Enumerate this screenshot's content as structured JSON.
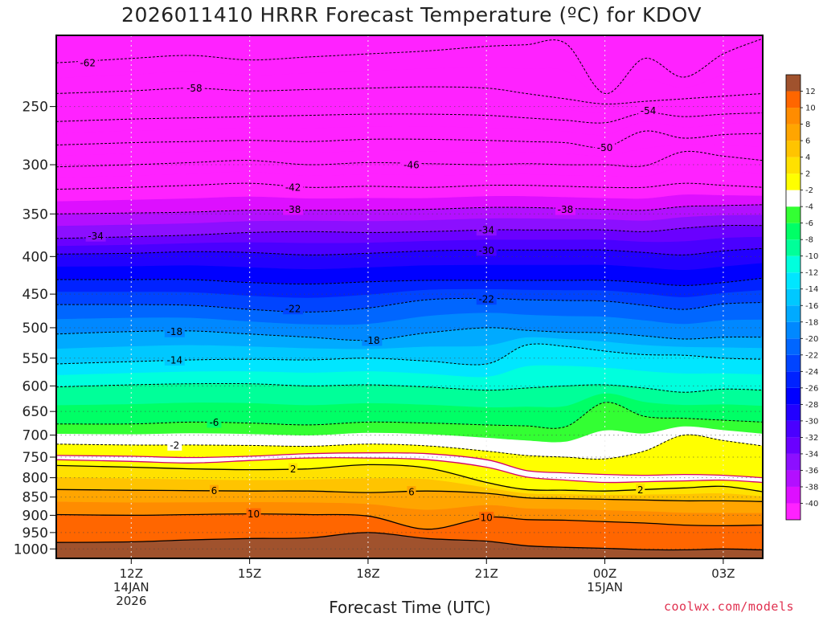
{
  "chart_data": {
    "type": "heatmap",
    "title": "2026011410 HRRR Forecast Temperature (ºC) for KDOV",
    "xlabel": "Forecast Time (UTC)",
    "ylabel": "",
    "credit": "coolwx.com/models",
    "x_ticks": [
      {
        "hour": 12,
        "label": "12Z",
        "date": "14JAN",
        "year": "2026"
      },
      {
        "hour": 15,
        "label": "15Z"
      },
      {
        "hour": 18,
        "label": "18Z"
      },
      {
        "hour": 21,
        "label": "21Z"
      },
      {
        "hour": 24,
        "label": "00Z",
        "date": "15JAN"
      },
      {
        "hour": 27,
        "label": "03Z"
      }
    ],
    "xlim": [
      10.1,
      28
    ],
    "y_ticks": [
      250,
      300,
      350,
      400,
      450,
      500,
      550,
      600,
      650,
      700,
      750,
      800,
      850,
      900,
      950,
      1000
    ],
    "ylim_hpa": [
      200,
      1030
    ],
    "colorbar_levels": [
      -40,
      -38,
      -36,
      -34,
      -32,
      -30,
      -28,
      -26,
      -24,
      -22,
      -20,
      -18,
      -16,
      -14,
      -12,
      -10,
      -8,
      -6,
      -4,
      -2,
      2,
      4,
      6,
      8,
      10,
      12
    ],
    "colorbar_colors": [
      "#ff22ff",
      "#dd0fff",
      "#b30fff",
      "#8c0fff",
      "#6a00ff",
      "#4a00ff",
      "#2200ff",
      "#0000ff",
      "#0022ff",
      "#0044ff",
      "#0066ff",
      "#0088ff",
      "#00aaff",
      "#00c8ff",
      "#00e6ff",
      "#00ffdd",
      "#00ff99",
      "#00ff66",
      "#33ff33",
      "#ffffff",
      "#ffff00",
      "#ffe100",
      "#ffc400",
      "#ffa500",
      "#ff8c00",
      "#ff6600",
      "#a0522d"
    ],
    "temperature_profiles": {
      "hours": [
        10.1,
        12,
        13.5,
        15,
        16.5,
        18,
        19.5,
        21,
        22,
        23,
        24,
        25,
        26,
        27,
        28
      ],
      "isotherms": [
        {
          "t": -62,
          "p": [
            218,
            215,
            213,
            216,
            214,
            212,
            210,
            207,
            206,
            205,
            240,
            215,
            228,
            212,
            202
          ]
        },
        {
          "t": -58,
          "p": [
            240,
            238,
            236,
            238,
            237,
            236,
            235,
            236,
            240,
            244,
            248,
            246,
            244,
            242,
            240
          ]
        },
        {
          "t": -54,
          "p": [
            262,
            260,
            259,
            258,
            257,
            256,
            256,
            257,
            259,
            261,
            263,
            255,
            258,
            256,
            255
          ]
        },
        {
          "t": -50,
          "p": [
            282,
            280,
            279,
            278,
            279,
            277,
            277,
            278,
            279,
            280,
            284,
            270,
            276,
            273,
            272
          ]
        },
        {
          "t": -46,
          "p": [
            302,
            300,
            298,
            296,
            300,
            298,
            299,
            300,
            299,
            300,
            300,
            301,
            288,
            292,
            296
          ]
        },
        {
          "t": -42,
          "p": [
            324,
            322,
            320,
            318,
            322,
            321,
            322,
            320,
            320,
            321,
            322,
            322,
            318,
            320,
            322
          ]
        },
        {
          "t": -38,
          "p": [
            350,
            349,
            348,
            346,
            346,
            346,
            345,
            343,
            343,
            344,
            345,
            346,
            342,
            341,
            340
          ]
        },
        {
          "t": -34,
          "p": [
            378,
            376,
            374,
            371,
            370,
            371,
            370,
            368,
            368,
            368,
            368,
            370,
            366,
            363,
            363
          ]
        },
        {
          "t": -30,
          "p": [
            397,
            396,
            394,
            395,
            398,
            396,
            393,
            392,
            392,
            392,
            392,
            395,
            398,
            393,
            390
          ]
        },
        {
          "t": -26,
          "p": [
            430,
            430,
            430,
            434,
            436,
            433,
            431,
            431,
            431,
            431,
            431,
            434,
            438,
            434,
            428
          ]
        },
        {
          "t": -22,
          "p": [
            465,
            465,
            466,
            472,
            476,
            470,
            458,
            456,
            458,
            459,
            460,
            466,
            472,
            464,
            462
          ]
        },
        {
          "t": -18,
          "p": [
            510,
            506,
            505,
            510,
            515,
            520,
            508,
            500,
            504,
            507,
            508,
            513,
            518,
            515,
            515
          ]
        },
        {
          "t": -14,
          "p": [
            560,
            556,
            553,
            552,
            553,
            550,
            555,
            560,
            528,
            530,
            538,
            544,
            545,
            550,
            552
          ]
        },
        {
          "t": -10,
          "p": [
            602,
            598,
            596,
            596,
            600,
            598,
            602,
            608,
            604,
            600,
            598,
            604,
            612,
            606,
            608
          ]
        },
        {
          "t": -6,
          "p": [
            676,
            676,
            672,
            674,
            678,
            672,
            674,
            678,
            680,
            682,
            632,
            660,
            664,
            668,
            672
          ]
        },
        {
          "t": -2,
          "p": [
            720,
            722,
            722,
            723,
            725,
            720,
            724,
            736,
            746,
            750,
            754,
            736,
            700,
            712,
            724
          ]
        },
        {
          "t": 2,
          "p": [
            770,
            774,
            778,
            780,
            778,
            768,
            776,
            812,
            830,
            832,
            834,
            830,
            826,
            822,
            836
          ]
        },
        {
          "t": 6,
          "p": [
            830,
            832,
            833,
            834,
            834,
            838,
            834,
            840,
            852,
            854,
            856,
            858,
            860,
            860,
            862
          ]
        },
        {
          "t": 10,
          "p": [
            898,
            900,
            898,
            896,
            898,
            902,
            940,
            906,
            912,
            914,
            918,
            922,
            928,
            930,
            928
          ]
        },
        {
          "t": 12,
          "p": [
            980,
            978,
            972,
            968,
            966,
            950,
            968,
            976,
            990,
            995,
            998,
            1002,
            1003,
            1000,
            1003
          ]
        }
      ]
    },
    "freezing_level_lines": [
      {
        "name": "upper",
        "p": [
          746,
          748,
          751,
          748,
          742,
          740,
          742,
          756,
          782,
          788,
          792,
          794,
          792,
          794,
          800
        ]
      },
      {
        "name": "lower",
        "p": [
          756,
          760,
          764,
          758,
          752,
          752,
          756,
          774,
          798,
          806,
          812,
          810,
          808,
          806,
          812
        ]
      }
    ],
    "surface_pressure_hpa": 1000,
    "contour_labels": [
      {
        "text": "-62",
        "hour": 10.9,
        "p": 218
      },
      {
        "text": "-58",
        "hour": 13.6,
        "p": 236
      },
      {
        "text": "-54",
        "hour": 25.1,
        "p": 253
      },
      {
        "text": "-50",
        "hour": 24.0,
        "p": 284
      },
      {
        "text": "-46",
        "hour": 19.1,
        "p": 300
      },
      {
        "text": "-42",
        "hour": 16.1,
        "p": 322
      },
      {
        "text": "-38",
        "hour": 16.1,
        "p": 345
      },
      {
        "text": "-38",
        "hour": 23.0,
        "p": 345
      },
      {
        "text": "-34",
        "hour": 11.1,
        "p": 375
      },
      {
        "text": "-34",
        "hour": 21.0,
        "p": 368
      },
      {
        "text": "-30",
        "hour": 21.0,
        "p": 392
      },
      {
        "text": "-22",
        "hour": 16.1,
        "p": 471
      },
      {
        "text": "-22",
        "hour": 21.0,
        "p": 457
      },
      {
        "text": "-18",
        "hour": 13.1,
        "p": 506
      },
      {
        "text": "-18",
        "hour": 18.1,
        "p": 520
      },
      {
        "text": "-14",
        "hour": 13.1,
        "p": 553
      },
      {
        "text": "-6",
        "hour": 14.1,
        "p": 672
      },
      {
        "text": "-2",
        "hour": 13.1,
        "p": 722
      },
      {
        "text": "2",
        "hour": 16.1,
        "p": 778
      },
      {
        "text": "2",
        "hour": 24.9,
        "p": 830
      },
      {
        "text": "6",
        "hour": 14.1,
        "p": 833
      },
      {
        "text": "6",
        "hour": 19.1,
        "p": 836
      },
      {
        "text": "10",
        "hour": 15.1,
        "p": 896
      },
      {
        "text": "10",
        "hour": 21.0,
        "p": 906
      }
    ]
  }
}
